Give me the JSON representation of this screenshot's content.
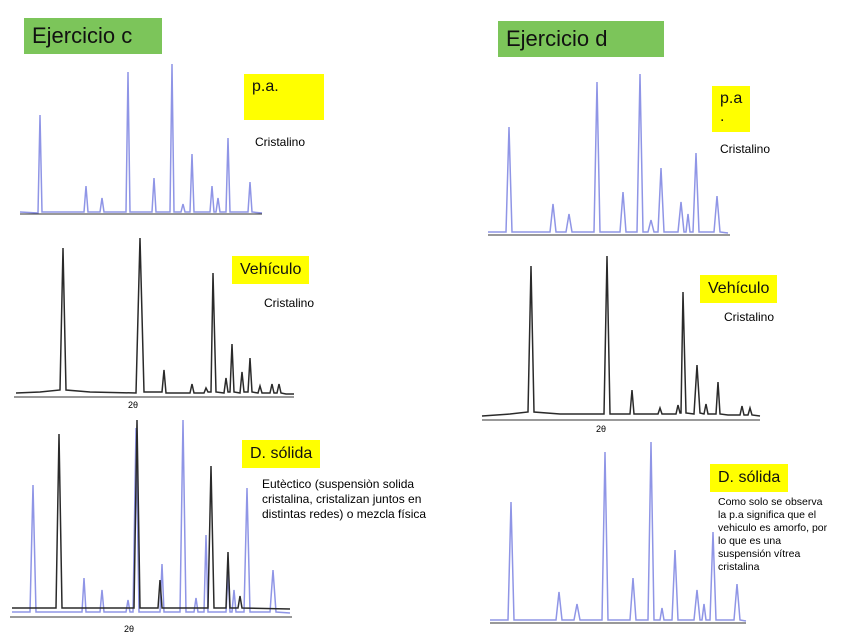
{
  "column_c": {
    "title": "Ejercicio c",
    "panels": [
      {
        "label": "p.a.",
        "note": "Cristalino"
      },
      {
        "label": "Vehículo",
        "note": "Cristalino",
        "axis_label": "2θ"
      },
      {
        "label": "D. sólida",
        "note": "Eutèctico (suspensiòn solida cristalina, cristalizan juntos en distintas redes) o mezcla física",
        "axis_label": "2θ"
      }
    ]
  },
  "column_d": {
    "title": "Ejercicio d",
    "panels": [
      {
        "label": "p.a\n.",
        "note": "Cristalino"
      },
      {
        "label": "Vehículo",
        "note": "Cristalino",
        "axis_label": "2θ"
      },
      {
        "label": "D. sólida",
        "note": "Como solo se observa la p.a significa que el vehiculo es amorfo, por lo que es una suspensión vítrea cristalina"
      }
    ]
  },
  "colors": {
    "title_bg": "#7cc55a",
    "label_bg": "#ffff00",
    "pa_trace": "#8f95e6",
    "vehicle_trace": "#2a2a2a"
  }
}
